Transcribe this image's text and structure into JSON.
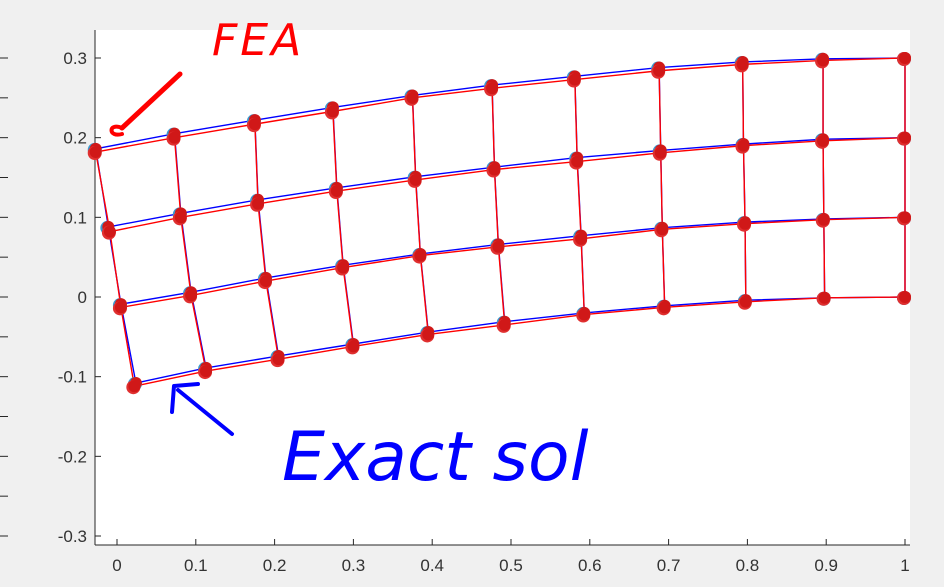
{
  "chart_data": {
    "type": "scatter",
    "title": "",
    "xlabel": "",
    "ylabel": "",
    "xlim": [
      -0.02,
      1.0
    ],
    "ylim": [
      -0.3,
      0.3
    ],
    "x_ticks": [
      "0",
      "0.1",
      "0.2",
      "0.3",
      "0.4",
      "0.5",
      "0.6",
      "0.7",
      "0.8",
      "0.9",
      "1"
    ],
    "y_ticks": [
      "0.3",
      "0.2",
      "0.1",
      "0",
      "-0.1",
      "-0.2",
      "-0.3"
    ],
    "x_tick_values": [
      0,
      0.1,
      0.2,
      0.3,
      0.4,
      0.5,
      0.6,
      0.7,
      0.8,
      0.9,
      1.0
    ],
    "y_tick_values": [
      0.3,
      0.2,
      0.1,
      0,
      -0.1,
      -0.2,
      -0.3
    ],
    "grid": false,
    "series": [
      {
        "name": "FEA",
        "color": "#ff0000",
        "rows": [
          {
            "x": [
              -0.027,
              0.073,
              0.175,
              0.274,
              0.375,
              0.476,
              0.581,
              0.688,
              0.794,
              0.896,
              1.0
            ],
            "y": [
              0.182,
              0.2,
              0.217,
              0.233,
              0.25,
              0.262,
              0.273,
              0.284,
              0.292,
              0.297,
              0.3
            ]
          },
          {
            "x": [
              -0.009,
              0.081,
              0.179,
              0.279,
              0.379,
              0.479,
              0.584,
              0.69,
              0.795,
              0.896,
              1.0
            ],
            "y": [
              0.082,
              0.1,
              0.117,
              0.133,
              0.147,
              0.16,
              0.17,
              0.181,
              0.19,
              0.196,
              0.2
            ]
          },
          {
            "x": [
              0.005,
              0.094,
              0.189,
              0.287,
              0.385,
              0.484,
              0.589,
              0.692,
              0.797,
              0.897,
              1.0
            ],
            "y": [
              -0.013,
              0.002,
              0.02,
              0.037,
              0.052,
              0.063,
              0.073,
              0.085,
              0.092,
              0.097,
              0.1
            ]
          },
          {
            "x": [
              0.022,
              0.113,
              0.205,
              0.3,
              0.395,
              0.492,
              0.593,
              0.695,
              0.798,
              0.898,
              1.0
            ],
            "y": [
              -0.112,
              -0.093,
              -0.078,
              -0.062,
              -0.047,
              -0.035,
              -0.022,
              -0.013,
              -0.006,
              -0.001,
              0.0
            ]
          }
        ]
      },
      {
        "name": "Exact sol",
        "color": "#0000ff",
        "rows": [
          {
            "x": [
              -0.027,
              0.073,
              0.175,
              0.274,
              0.375,
              0.476,
              0.581,
              0.688,
              0.794,
              0.896,
              1.0
            ],
            "y": [
              0.186,
              0.205,
              0.222,
              0.238,
              0.253,
              0.266,
              0.277,
              0.288,
              0.295,
              0.299,
              0.3
            ]
          },
          {
            "x": [
              -0.011,
              0.081,
              0.179,
              0.279,
              0.379,
              0.479,
              0.584,
              0.69,
              0.795,
              0.896,
              1.0
            ],
            "y": [
              0.088,
              0.105,
              0.122,
              0.137,
              0.151,
              0.163,
              0.175,
              0.184,
              0.192,
              0.198,
              0.2
            ]
          },
          {
            "x": [
              0.005,
              0.094,
              0.189,
              0.287,
              0.385,
              0.484,
              0.589,
              0.692,
              0.797,
              0.897,
              1.0
            ],
            "y": [
              -0.009,
              0.006,
              0.024,
              0.04,
              0.054,
              0.066,
              0.077,
              0.087,
              0.094,
              0.098,
              0.1
            ]
          },
          {
            "x": [
              0.024,
              0.113,
              0.205,
              0.3,
              0.395,
              0.492,
              0.593,
              0.695,
              0.798,
              0.898,
              1.0
            ],
            "y": [
              -0.108,
              -0.089,
              -0.074,
              -0.059,
              -0.044,
              -0.031,
              -0.02,
              -0.011,
              -0.004,
              -0.001,
              0.0
            ]
          }
        ]
      }
    ],
    "annotations": [
      {
        "text": "FEA",
        "color": "#ff0000"
      },
      {
        "text": "Exact sol",
        "color": "#0000ff"
      }
    ]
  }
}
